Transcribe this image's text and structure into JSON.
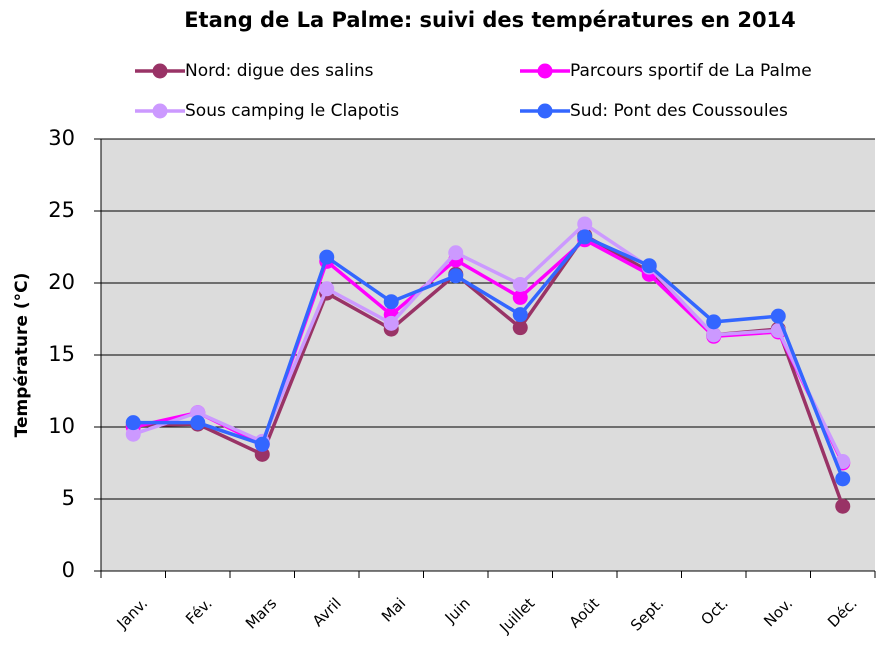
{
  "chart_data": {
    "type": "line",
    "title": "Etang de La Palme: suivi des températures en 2014",
    "y_label": "Température (°C)",
    "categories": [
      "Janv.",
      "Fév.",
      "Mars",
      "Avril",
      "Mai",
      "Juin",
      "Juillet",
      "Août",
      "Sept.",
      "Oct.",
      "Nov.",
      "Déc."
    ],
    "series": [
      {
        "name": "Nord: digue des salins",
        "color": "#993366",
        "values": [
          10.1,
          10.2,
          8.1,
          19.3,
          16.8,
          20.6,
          16.9,
          23.3,
          20.8,
          16.4,
          16.8,
          4.5
        ]
      },
      {
        "name": "Parcours sportif de La Palme",
        "color": "#ff00ff",
        "values": [
          10.0,
          11.0,
          8.8,
          21.5,
          17.8,
          21.6,
          19.0,
          23.0,
          20.6,
          16.3,
          16.6,
          7.5
        ]
      },
      {
        "name": "Sous camping le Clapotis",
        "color": "#cc99ff",
        "values": [
          9.5,
          11.0,
          9.0,
          19.6,
          17.2,
          22.1,
          19.9,
          24.1,
          21.1,
          16.4,
          16.7,
          7.6
        ]
      },
      {
        "name": "Sud: Pont des Coussoules",
        "color": "#3366ff",
        "values": [
          10.3,
          10.3,
          8.8,
          21.8,
          18.7,
          20.5,
          17.8,
          23.2,
          21.2,
          17.3,
          17.7,
          6.4
        ]
      }
    ],
    "ylim": [
      0,
      30
    ],
    "yticks": [
      0,
      5,
      10,
      15,
      20,
      25,
      30
    ],
    "grid": true
  }
}
